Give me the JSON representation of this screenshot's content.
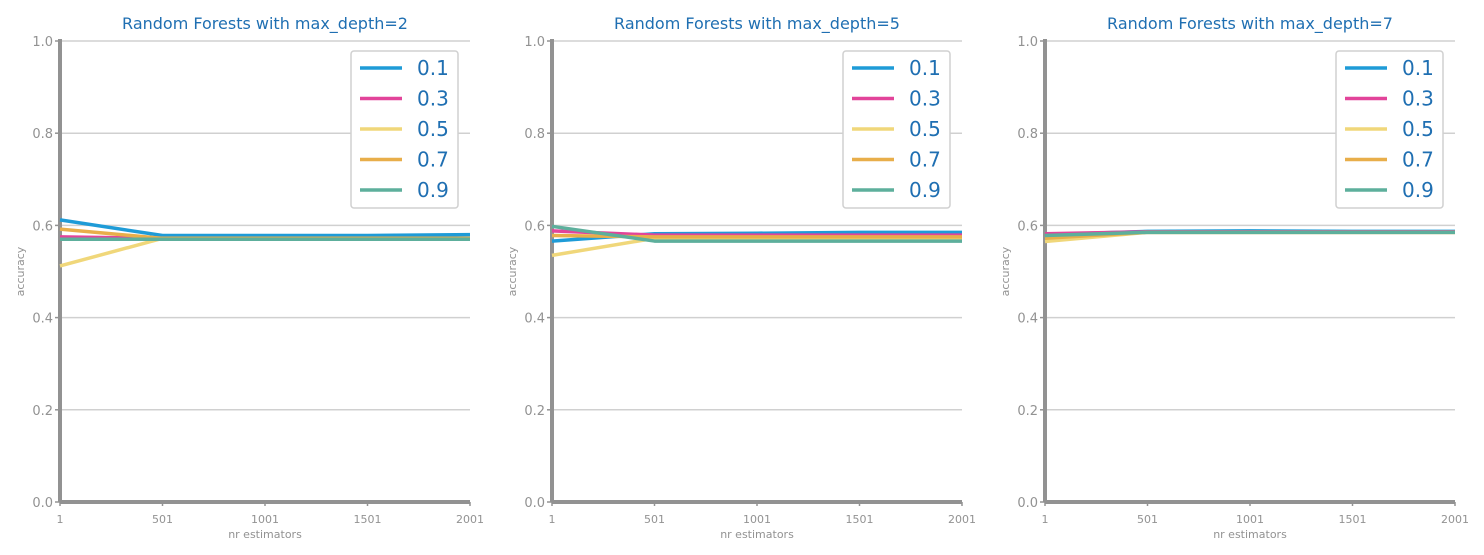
{
  "colors": {
    "title": "#1f6fb2",
    "axis": "#929292",
    "grid": "#d0d0d0",
    "legend_text": "#1f6fb2",
    "series": [
      "#1e9bd7",
      "#e2449a",
      "#f0d77a",
      "#e8ae4a",
      "#5daf9c"
    ]
  },
  "chart_data": [
    {
      "type": "line",
      "title": "Random Forests with max_depth=2",
      "xlabel": "nr estimators",
      "ylabel": "accuracy",
      "xlim": [
        1,
        2001
      ],
      "ylim": [
        0.0,
        1.0
      ],
      "xticks": [
        "1",
        "501",
        "1001",
        "1501",
        "2001"
      ],
      "yticks": [
        "0.0",
        "0.2",
        "0.4",
        "0.6",
        "0.8",
        "1.0"
      ],
      "grid": "horizontal",
      "legend_position": "top-right",
      "x": [
        1,
        501,
        1001,
        1501,
        2001
      ],
      "series": [
        {
          "name": "0.1",
          "values": [
            0.612,
            0.578,
            0.578,
            0.578,
            0.58
          ]
        },
        {
          "name": "0.3",
          "values": [
            0.575,
            0.572,
            0.572,
            0.572,
            0.572
          ]
        },
        {
          "name": "0.5",
          "values": [
            0.512,
            0.572,
            0.572,
            0.572,
            0.572
          ]
        },
        {
          "name": "0.7",
          "values": [
            0.592,
            0.572,
            0.572,
            0.572,
            0.572
          ]
        },
        {
          "name": "0.9",
          "values": [
            0.57,
            0.57,
            0.57,
            0.57,
            0.57
          ]
        }
      ]
    },
    {
      "type": "line",
      "title": "Random Forests with max_depth=5",
      "xlabel": "nr estimators",
      "ylabel": "accuracy",
      "xlim": [
        1,
        2001
      ],
      "ylim": [
        0.0,
        1.0
      ],
      "xticks": [
        "1",
        "501",
        "1001",
        "1501",
        "2001"
      ],
      "yticks": [
        "0.0",
        "0.2",
        "0.4",
        "0.6",
        "0.8",
        "1.0"
      ],
      "grid": "horizontal",
      "legend_position": "top-right",
      "x": [
        1,
        501,
        1001,
        1501,
        2001
      ],
      "series": [
        {
          "name": "0.1",
          "values": [
            0.566,
            0.582,
            0.583,
            0.585,
            0.585
          ]
        },
        {
          "name": "0.3",
          "values": [
            0.588,
            0.579,
            0.579,
            0.579,
            0.579
          ]
        },
        {
          "name": "0.5",
          "values": [
            0.535,
            0.572,
            0.572,
            0.572,
            0.572
          ]
        },
        {
          "name": "0.7",
          "values": [
            0.578,
            0.575,
            0.575,
            0.575,
            0.575
          ]
        },
        {
          "name": "0.9",
          "values": [
            0.598,
            0.566,
            0.566,
            0.566,
            0.566
          ]
        }
      ]
    },
    {
      "type": "line",
      "title": "Random Forests with max_depth=7",
      "xlabel": "nr estimators",
      "ylabel": "accuracy",
      "xlim": [
        1,
        2001
      ],
      "ylim": [
        0.0,
        1.0
      ],
      "xticks": [
        "1",
        "501",
        "1001",
        "1501",
        "2001"
      ],
      "yticks": [
        "0.0",
        "0.2",
        "0.4",
        "0.6",
        "0.8",
        "1.0"
      ],
      "grid": "horizontal",
      "legend_position": "top-right",
      "x": [
        1,
        501,
        1001,
        1501,
        2001
      ],
      "series": [
        {
          "name": "0.1",
          "values": [
            0.58,
            0.587,
            0.588,
            0.587,
            0.587
          ]
        },
        {
          "name": "0.3",
          "values": [
            0.582,
            0.586,
            0.586,
            0.586,
            0.586
          ]
        },
        {
          "name": "0.5",
          "values": [
            0.565,
            0.585,
            0.585,
            0.585,
            0.585
          ]
        },
        {
          "name": "0.7",
          "values": [
            0.572,
            0.585,
            0.585,
            0.585,
            0.585
          ]
        },
        {
          "name": "0.9",
          "values": [
            0.578,
            0.585,
            0.585,
            0.585,
            0.585
          ]
        }
      ]
    }
  ]
}
